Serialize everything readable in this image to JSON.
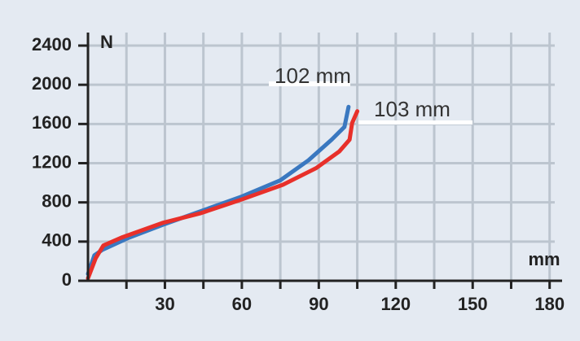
{
  "chart_data": {
    "type": "line",
    "y_label": "N",
    "x_label": "mm",
    "xlim": [
      0,
      182
    ],
    "ylim": [
      0,
      2450
    ],
    "xticks": [
      30,
      60,
      90,
      120,
      150,
      180
    ],
    "minor_xticks": [
      15,
      45,
      75,
      105,
      135,
      165
    ],
    "yticks": [
      0,
      400,
      800,
      1200,
      1600,
      2000,
      2400
    ],
    "grid": true,
    "series": [
      {
        "name": "102 mm",
        "color": "#3a78c0",
        "x": [
          0,
          2.5,
          5.7,
          16,
          29,
          44,
          60,
          75,
          86,
          95,
          100,
          101.6
        ],
        "values": [
          70,
          260,
          317,
          440,
          570,
          710,
          860,
          1025,
          1230,
          1440,
          1570,
          1775
        ]
      },
      {
        "name": "103 mm",
        "color": "#e8302a",
        "x": [
          0,
          3,
          6,
          13,
          29,
          44,
          60,
          76,
          89,
          98,
          102,
          103,
          105
        ],
        "values": [
          25,
          230,
          360,
          440,
          590,
          690,
          830,
          980,
          1150,
          1320,
          1440,
          1610,
          1730
        ]
      }
    ]
  }
}
